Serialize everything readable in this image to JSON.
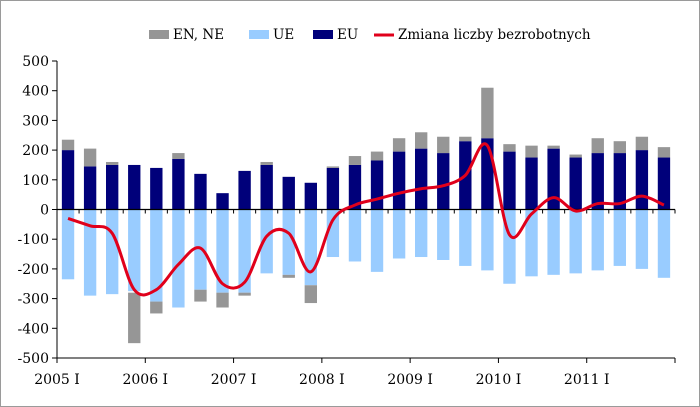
{
  "chart_data": {
    "type": "bar",
    "stacked": true,
    "title": "",
    "xlabel": "",
    "ylabel": "",
    "ylim": [
      -500,
      500
    ],
    "yticks": [
      -500,
      -400,
      -300,
      -200,
      -100,
      0,
      100,
      200,
      300,
      400,
      500
    ],
    "grid": false,
    "legend_position": "top",
    "x_tick_labels": [
      "2005 I",
      "2006 I",
      "2007 I",
      "2008 I",
      "2009 I",
      "2010 I",
      "2011 I"
    ],
    "x_tick_every": 4,
    "categories": [
      "2005 I",
      "2005 II",
      "2005 III",
      "2005 IV",
      "2006 I",
      "2006 II",
      "2006 III",
      "2006 IV",
      "2007 I",
      "2007 II",
      "2007 III",
      "2007 IV",
      "2008 I",
      "2008 II",
      "2008 III",
      "2008 IV",
      "2009 I",
      "2009 II",
      "2009 III",
      "2009 IV",
      "2010 I",
      "2010 II",
      "2010 III",
      "2010 IV",
      "2011 I",
      "2011 II",
      "2011 III",
      "2011 IV"
    ],
    "series": [
      {
        "name": "EN, NE",
        "color": "#969696",
        "kind": "bar",
        "values": [
          [
            200,
            235
          ],
          [
            145,
            205
          ],
          [
            150,
            160
          ],
          [
            0,
            0
          ],
          [
            -310,
            -350
          ],
          [
            170,
            190
          ],
          [
            -270,
            -310
          ],
          [
            -280,
            -330
          ],
          [
            -280,
            -290
          ],
          [
            150,
            160
          ],
          [
            -220,
            -230
          ],
          [
            -255,
            -315
          ],
          [
            140,
            145
          ],
          [
            150,
            180
          ],
          [
            165,
            195
          ],
          [
            195,
            240
          ],
          [
            205,
            260
          ],
          [
            190,
            245
          ],
          [
            230,
            245
          ],
          [
            240,
            410
          ],
          [
            195,
            220
          ],
          [
            175,
            215
          ],
          [
            205,
            215
          ],
          [
            175,
            185
          ],
          [
            190,
            240
          ],
          [
            190,
            230
          ],
          [
            200,
            245
          ],
          [
            175,
            210
          ]
        ],
        "values_note": "bar segments as [start, end] in data units"
      },
      {
        "name": "UE",
        "color": "#99ccff",
        "kind": "bar",
        "values": [
          -235,
          -290,
          -285,
          -275,
          -310,
          -330,
          -270,
          -280,
          -280,
          -215,
          -220,
          -255,
          -160,
          -175,
          -210,
          -165,
          -160,
          -170,
          -190,
          -205,
          -250,
          -225,
          -220,
          -215,
          -205,
          -190,
          -200,
          -230
        ]
      },
      {
        "name": "EU",
        "color": "#00007a",
        "kind": "bar",
        "values": [
          200,
          145,
          150,
          150,
          140,
          170,
          120,
          55,
          130,
          150,
          110,
          90,
          140,
          150,
          165,
          195,
          205,
          190,
          230,
          240,
          195,
          175,
          205,
          175,
          190,
          190,
          200,
          175
        ]
      },
      {
        "name": "Zmiana liczby bezrobotnych",
        "color": "#e0001b",
        "kind": "line",
        "smooth": true,
        "values": [
          -30,
          -55,
          -80,
          -270,
          -270,
          -185,
          -130,
          -250,
          -245,
          -90,
          -80,
          -210,
          -35,
          15,
          35,
          55,
          70,
          80,
          115,
          215,
          -85,
          -15,
          40,
          -5,
          20,
          20,
          45,
          15
        ]
      }
    ],
    "extra_bars": [
      {
        "series": "EN, NE",
        "index": 3,
        "segment": [
          -280,
          -450
        ]
      }
    ]
  }
}
